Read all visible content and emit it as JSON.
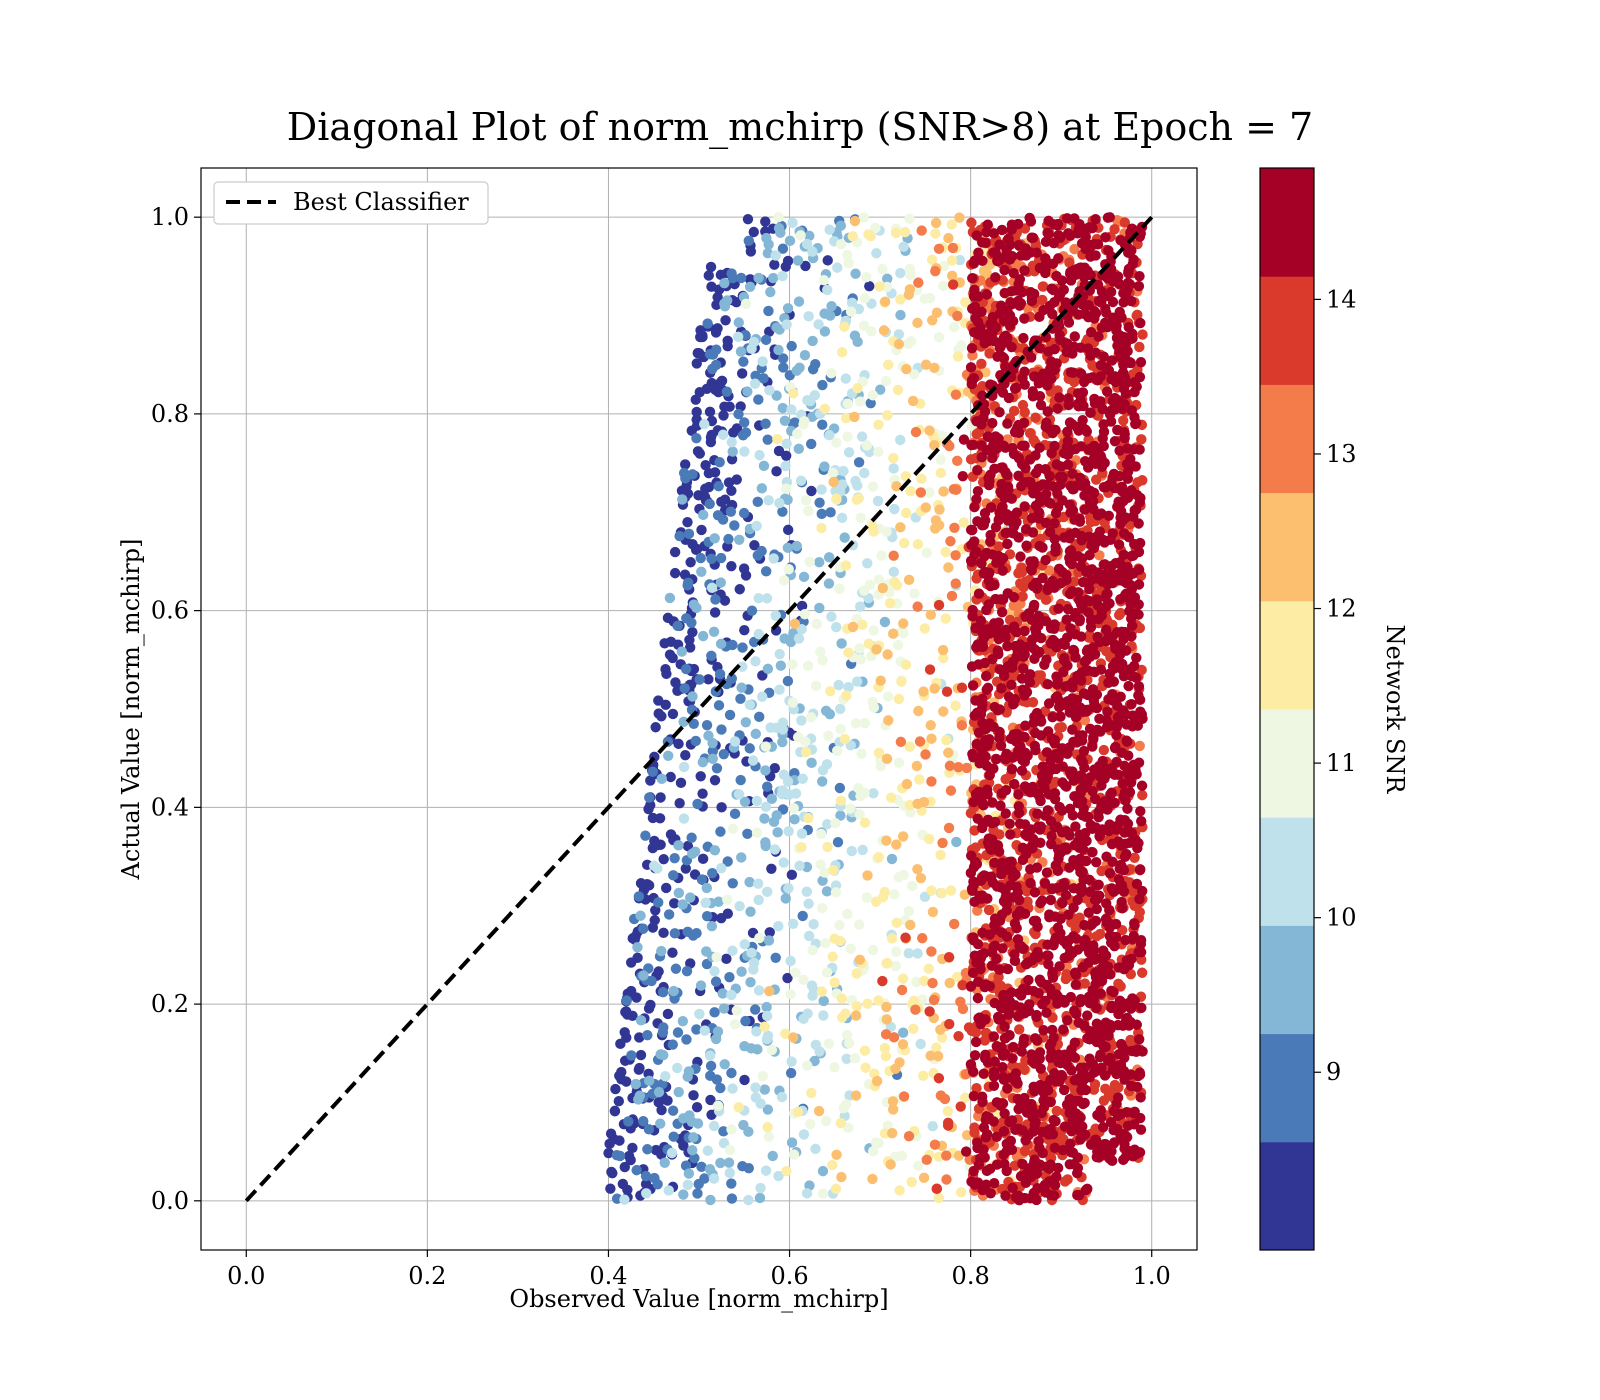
{
  "chart_data": {
    "type": "scatter",
    "title": "Diagonal Plot of norm_mchirp (SNR>8) at Epoch = 7",
    "xlabel": "Observed Value [norm_mchirp]",
    "ylabel": "Actual Value [norm_mchirp]",
    "xlim": [
      -0.05,
      1.05
    ],
    "ylim": [
      -0.05,
      1.05
    ],
    "xticks": [
      "0.0",
      "0.2",
      "0.4",
      "0.6",
      "0.8",
      "1.0"
    ],
    "yticks": [
      "0.0",
      "0.2",
      "0.4",
      "0.6",
      "0.8",
      "1.0"
    ],
    "grid": true,
    "legend": {
      "position": "top-left",
      "entries": [
        "Best Classifier"
      ]
    },
    "reference_line": {
      "name": "Best Classifier",
      "style": "dashed",
      "color": "#000000",
      "x": [
        0,
        1
      ],
      "y": [
        0,
        1
      ]
    },
    "colorbar": {
      "label": "Network SNR",
      "range": [
        8,
        15
      ],
      "ticks": [
        "9",
        "10",
        "11",
        "12",
        "13",
        "14"
      ],
      "bins": [
        {
          "from": 8.0,
          "to": 8.7,
          "color": "#313695"
        },
        {
          "from": 8.7,
          "to": 9.4,
          "color": "#4a7ab8"
        },
        {
          "from": 9.4,
          "to": 10.1,
          "color": "#84b7d6"
        },
        {
          "from": 10.1,
          "to": 10.8,
          "color": "#bfe1ec"
        },
        {
          "from": 10.8,
          "to": 11.5,
          "color": "#eef7e1"
        },
        {
          "from": 11.5,
          "to": 12.2,
          "color": "#fdeca4"
        },
        {
          "from": 12.2,
          "to": 12.9,
          "color": "#fbbf6f"
        },
        {
          "from": 12.9,
          "to": 13.6,
          "color": "#f47c4b"
        },
        {
          "from": 13.6,
          "to": 14.3,
          "color": "#d93a2b"
        },
        {
          "from": 14.3,
          "to": 15.0,
          "color": "#a50026"
        }
      ]
    },
    "scatter_summary": {
      "x_range": [
        0.4,
        0.99
      ],
      "y_range": [
        0.0,
        1.0
      ],
      "description_of_trend": "Low-SNR points (blue) concentrate at observed 0.40–0.65; high-SNR points (dark red) dominate observed 0.80–0.99"
    }
  }
}
